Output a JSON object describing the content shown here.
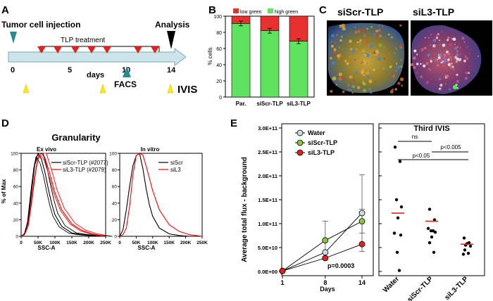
{
  "panels": {
    "A": {
      "letter": "A",
      "injection": "Tumor cell injection",
      "treatment": "TLP treatment",
      "analysis": "Analysis",
      "ticks": [
        "0",
        "5",
        "10",
        "14"
      ],
      "xlabel": "days",
      "facs": "FACS",
      "ivis": "IVIS"
    },
    "B": {
      "letter": "B",
      "legend_low": "low green",
      "legend_high": "high green",
      "ylabel": "% cells",
      "yticks": [
        "0",
        "20",
        "40",
        "60",
        "80",
        "100"
      ],
      "low_color": "#e8312f",
      "high_color": "#5fe35f"
    },
    "C": {
      "letter": "C",
      "left_title": "siScr-TLP",
      "right_title": "siL3-TLP"
    },
    "D": {
      "letter": "D",
      "title": "Granularity",
      "left": {
        "subtitle": "Ex vivo",
        "legend": [
          "siScr-TLP (#2077)",
          "siL3-TLP (#2079)"
        ],
        "xticks": [
          "0",
          "50K",
          "100K",
          "150K",
          "200K",
          "250K"
        ],
        "yticks": [
          "0",
          "20",
          "40",
          "60",
          "80",
          "100"
        ]
      },
      "right": {
        "subtitle": "In vitro",
        "legend": [
          "siScr",
          "siL3"
        ],
        "xticks": [
          "0",
          "50K",
          "100K",
          "150K",
          "200K",
          "250K"
        ],
        "yticks": [
          "0",
          "20",
          "40",
          "60",
          "80",
          "100"
        ]
      },
      "ylabel": "% of Max",
      "xlabel": "SSC-A"
    },
    "E": {
      "letter": "E",
      "ylabel": "Average total flux - background",
      "xlabel": "Days",
      "legend": [
        "Water",
        "siScr-TLP",
        "siL3-TLP"
      ],
      "pvalue": "p=0.0003",
      "yticks": [
        "0.0E+00",
        "5.0E+10",
        "1.0E+11",
        "1.5E+11",
        "2.0E+11",
        "2.5E+11",
        "3.0E+11"
      ],
      "xticks": [
        "1",
        "8",
        "14"
      ],
      "right_title": "Third IVIS",
      "sig": [
        "ns",
        "p<0.005",
        "p<0.05"
      ],
      "groups": [
        "Water",
        "siScr-TLP",
        "siL3-TLP"
      ]
    }
  },
  "chart_data": [
    {
      "type": "bar",
      "panel": "B",
      "categories": [
        "Par.",
        "siScr-TLP",
        "siL3-TLP"
      ],
      "series": [
        {
          "name": "high green",
          "values": [
            91,
            82,
            69
          ]
        },
        {
          "name": "low green",
          "values": [
            9,
            18,
            31
          ]
        }
      ],
      "ylabel": "% cells",
      "ylim": [
        0,
        100
      ]
    },
    {
      "type": "line",
      "panel": "E",
      "x": [
        1,
        8,
        14
      ],
      "series": [
        {
          "name": "Water",
          "values": [
            1000000000.0,
            40000000000.0,
            122000000000.0
          ],
          "errors": [
            0,
            0,
            80000000000.0
          ],
          "color": "#c6dde3"
        },
        {
          "name": "siScr-TLP",
          "values": [
            1000000000.0,
            65000000000.0,
            105000000000.0
          ],
          "errors": [
            0,
            40000000000.0,
            25000000000.0
          ],
          "color": "#8cc63f"
        },
        {
          "name": "siL3-TLP",
          "values": [
            1000000000.0,
            28000000000.0,
            57000000000.0
          ],
          "errors": [
            0,
            0,
            0
          ],
          "color": "#e2231a"
        }
      ],
      "xlabel": "Days",
      "ylabel": "Average total flux - background",
      "ylim": [
        0,
        300000000000.0
      ]
    },
    {
      "type": "scatter",
      "panel": "E-right",
      "title": "Third IVIS",
      "categories": [
        "Water",
        "siScr-TLP",
        "siL3-TLP"
      ],
      "points": [
        [
          260000000000.0,
          230000000000.0,
          150000000000.0,
          135000000000.0,
          112000000000.0,
          80000000000.0,
          76000000000.0,
          40000000000.0,
          2000000000.0
        ],
        [
          130000000000.0,
          108000000000.0,
          90000000000.0,
          85000000000.0,
          85000000000.0,
          82000000000.0,
          72000000000.0,
          60000000000.0,
          40000000000.0
        ],
        [
          70000000000.0,
          60000000000.0,
          58000000000.0,
          55000000000.0,
          53000000000.0,
          45000000000.0,
          38000000000.0,
          36000000000.0
        ]
      ],
      "means": [
        122000000000.0,
        105000000000.0,
        57000000000.0
      ],
      "ylim": [
        0,
        300000000000.0
      ]
    },
    {
      "type": "line",
      "panel": "D-left",
      "title": "Ex vivo",
      "x": [
        0,
        10000,
        20000,
        30000,
        40000,
        50000,
        60000,
        70000,
        80000,
        90000,
        100000,
        120000,
        150000,
        180000,
        210000,
        250000
      ],
      "series": [
        {
          "name": "siScr-TLP (#2077)",
          "values": [
            0,
            3,
            18,
            55,
            88,
            100,
            93,
            78,
            58,
            40,
            26,
            12,
            4,
            2,
            1,
            0
          ],
          "color": "#000000"
        },
        {
          "name": "siL3-TLP (#2079)",
          "values": [
            0,
            2,
            12,
            40,
            72,
            95,
            100,
            95,
            82,
            68,
            53,
            32,
            15,
            7,
            3,
            0
          ],
          "color": "#ff0000"
        }
      ],
      "xlabel": "SSC-A",
      "ylabel": "% of Max",
      "xlim": [
        0,
        250000
      ],
      "ylim": [
        0,
        100
      ]
    },
    {
      "type": "line",
      "panel": "D-right",
      "title": "In vitro",
      "x": [
        0,
        10000,
        20000,
        30000,
        40000,
        50000,
        60000,
        70000,
        80000,
        90000,
        100000,
        120000,
        150000,
        180000,
        210000,
        250000
      ],
      "series": [
        {
          "name": "siScr",
          "values": [
            0,
            8,
            32,
            60,
            85,
            97,
            100,
            82,
            58,
            38,
            24,
            10,
            3,
            1,
            0,
            0
          ],
          "color": "#000000"
        },
        {
          "name": "siL3",
          "values": [
            0,
            2,
            10,
            36,
            74,
            97,
            100,
            98,
            85,
            70,
            55,
            32,
            14,
            6,
            2,
            0
          ],
          "color": "#ff0000"
        }
      ],
      "xlabel": "SSC-A",
      "ylabel": "% of Max",
      "xlim": [
        0,
        250000
      ],
      "ylim": [
        0,
        100
      ]
    }
  ]
}
